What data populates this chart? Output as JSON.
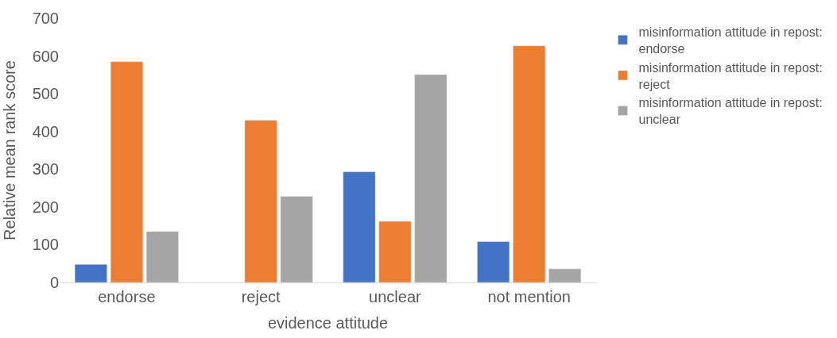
{
  "chart_data": {
    "type": "bar",
    "xlabel": "evidence attitude",
    "ylabel": "Relative mean rank score",
    "categories": [
      "endorse",
      "reject",
      "unclear",
      "not mention"
    ],
    "series": [
      {
        "name": "misinformation attitude in repost: endorse",
        "color": "#4472c4",
        "values": [
          48,
          null,
          293,
          108
        ]
      },
      {
        "name": "misinformation attitude in repost: reject",
        "color": "#ed7d31",
        "values": [
          585,
          430,
          162,
          627
        ]
      },
      {
        "name": "misinformation attitude in repost: unclear",
        "color": "#a5a5a5",
        "values": [
          135,
          228,
          551,
          36
        ]
      }
    ],
    "ylim": [
      0,
      700
    ],
    "yticks": [
      0,
      100,
      200,
      300,
      400,
      500,
      600,
      700
    ],
    "grid": false,
    "legend": "top right"
  }
}
